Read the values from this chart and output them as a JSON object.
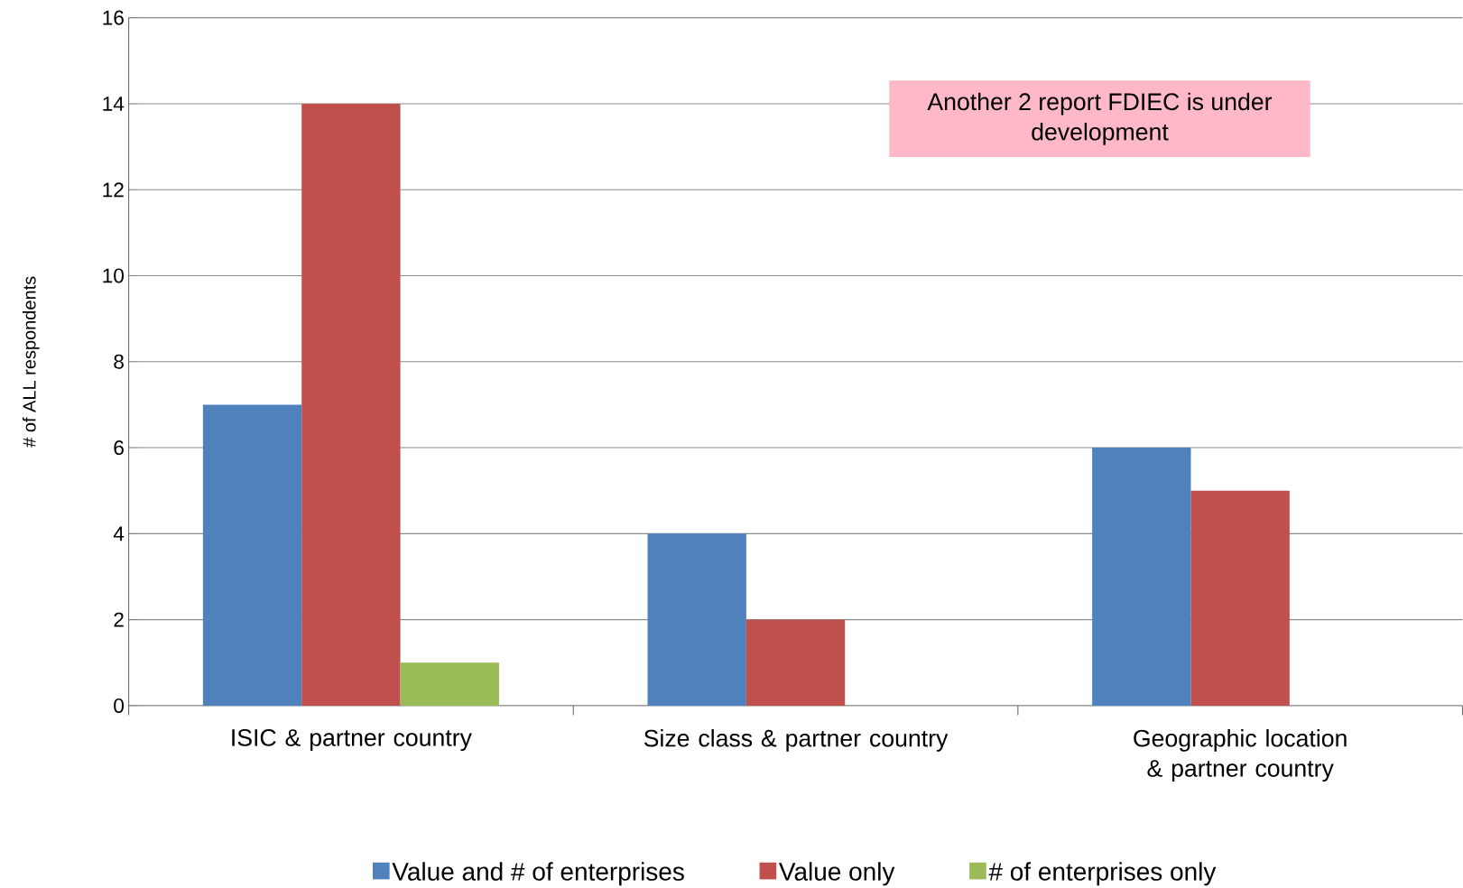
{
  "chart_data": {
    "type": "bar",
    "ylabel": "# of ALL respondents",
    "categories": [
      "ISIC & partner country",
      "Size class & partner country",
      "Geographic location & partner country"
    ],
    "series": [
      {
        "name": "Value and # of enterprises",
        "color": "#4f81bd",
        "values": [
          7,
          4,
          6
        ]
      },
      {
        "name": "Value only",
        "color": "#c0504d",
        "values": [
          14,
          2,
          5
        ]
      },
      {
        "name": "# of enterprises only",
        "color": "#9bbb59",
        "values": [
          1,
          null,
          null
        ]
      }
    ],
    "ylim": [
      0,
      16
    ],
    "yticks": [
      0,
      2,
      4,
      6,
      8,
      10,
      12,
      14,
      16
    ],
    "grid": "y",
    "legend": "bottom",
    "annotations": [
      "Another 2 report FDIEC is under development"
    ]
  }
}
